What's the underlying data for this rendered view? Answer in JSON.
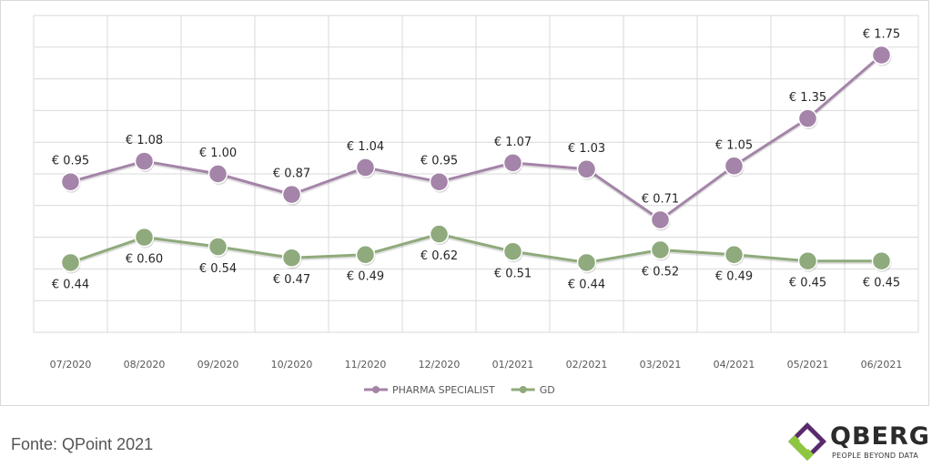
{
  "chart_data": {
    "type": "line",
    "categories": [
      "07/2020",
      "08/2020",
      "09/2020",
      "10/2020",
      "11/2020",
      "12/2020",
      "01/2021",
      "02/2021",
      "03/2021",
      "04/2021",
      "05/2021",
      "06/2021"
    ],
    "series": [
      {
        "name": "PHARMA SPECIALIST",
        "color": "#a484a8",
        "values": [
          0.95,
          1.08,
          1.0,
          0.87,
          1.04,
          0.95,
          1.07,
          1.03,
          0.71,
          1.05,
          1.35,
          1.75
        ],
        "labels": [
          "€ 0.95",
          "€ 1.08",
          "€ 1.00",
          "€ 0.87",
          "€ 1.04",
          "€ 0.95",
          "€ 1.07",
          "€ 1.03",
          "€ 0.71",
          "€ 1.05",
          "€ 1.35",
          "€ 1.75"
        ]
      },
      {
        "name": "GD",
        "color": "#8faa7c",
        "values": [
          0.44,
          0.6,
          0.54,
          0.47,
          0.49,
          0.62,
          0.51,
          0.44,
          0.52,
          0.49,
          0.45,
          0.45
        ],
        "labels": [
          "€ 0.44",
          "€ 0.60",
          "€ 0.54",
          "€ 0.47",
          "€ 0.49",
          "€ 0.62",
          "€ 0.51",
          "€ 0.44",
          "€ 0.52",
          "€ 0.49",
          "€ 0.45",
          "€ 0.45"
        ]
      }
    ],
    "ylim": [
      0,
      2.0
    ],
    "grid": true,
    "y_tick_labels_shown": false,
    "legend": "bottom"
  },
  "source": "Fonte: QPoint 2021",
  "logo": {
    "name": "QBERG",
    "tagline": "PEOPLE BEYOND DATA"
  }
}
